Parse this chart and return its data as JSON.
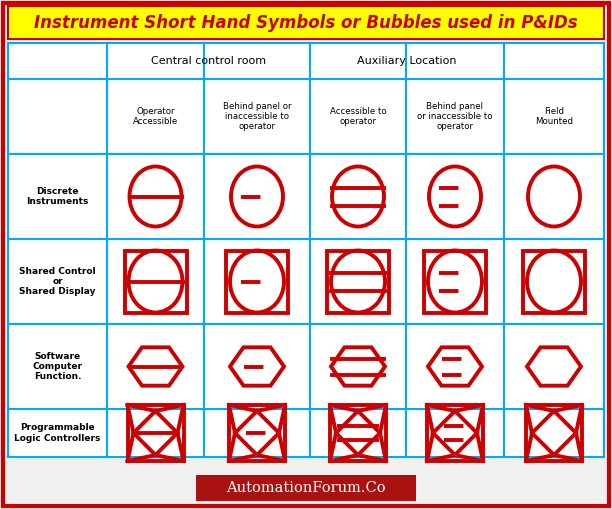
{
  "title": "Instrument Short Hand Symbols or Bubbles used in P&IDs",
  "title_bg": "#FFFF00",
  "title_color": "#CC0000",
  "outer_border_color": "#CC0000",
  "grid_color": "#00AAFF",
  "symbol_color": "#CC0000",
  "bg_color": "#F0F0F0",
  "footer_text": "AutomationForum.Co",
  "footer_bg": "#AA1111",
  "footer_text_color": "#FFFFFF",
  "col_headers_top": [
    "Central control room",
    "Auxiliary Location"
  ],
  "col_headers": [
    "Operator\nAccessible",
    "Behind panel or\ninaccessible to\noperator",
    "Accessible to\noperator",
    "Behind panel\nor inaccessible to\noperator",
    "Field\nMounted"
  ],
  "row_labels": [
    "Discrete\nInstruments",
    "Shared Control\nor\nShared Display",
    "Software\nComputer\nFunction.",
    "Programmable\nLogic Controllers"
  ],
  "lw_sym": 2.8,
  "lw_grid": 1.5,
  "lw_outer": 3.0
}
